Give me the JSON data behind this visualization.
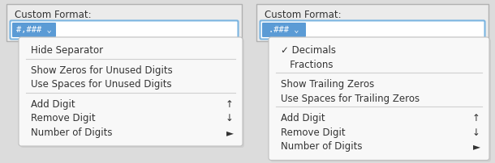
{
  "fig_w": 6.1,
  "fig_h": 2.02,
  "dpi": 100,
  "bg_color": "#dcdcdc",
  "panel_bg": "#ebebeb",
  "panel_border": "#b0b0b0",
  "input_bg": "#ffffff",
  "input_border": "#7ab4e0",
  "btn_bg": "#5b9bd5",
  "btn_text": "#ffffff",
  "menu_bg": "#f8f8f8",
  "menu_shadow_color": "#bbbbbb",
  "menu_border": "#c0c0c0",
  "sep_color": "#d0d0d0",
  "text_color": "#333333",
  "left": {
    "title": "Custom Format:",
    "btn_label": "#,### ⌄",
    "items": [
      {
        "text": "Hide Separator",
        "shortcut": "",
        "group": 1
      },
      {
        "text": "Show Zeros for Unused Digits",
        "shortcut": "",
        "group": 2
      },
      {
        "text": "Use Spaces for Unused Digits",
        "shortcut": "",
        "group": 2
      },
      {
        "text": "Add Digit",
        "shortcut": "↑",
        "group": 3
      },
      {
        "text": "Remove Digit",
        "shortcut": "↓",
        "group": 3
      },
      {
        "text": "Number of Digits",
        "shortcut": "►",
        "group": 3
      }
    ]
  },
  "right": {
    "title": "Custom Format:",
    "btn_label": ".### ⌄",
    "items": [
      {
        "text": "✓ Decimals",
        "shortcut": "",
        "group": 1
      },
      {
        "text": "   Fractions",
        "shortcut": "",
        "group": 1
      },
      {
        "text": "Show Trailing Zeros",
        "shortcut": "",
        "group": 2
      },
      {
        "text": "Use Spaces for Trailing Zeros",
        "shortcut": "",
        "group": 2
      },
      {
        "text": "Add Digit",
        "shortcut": "↑",
        "group": 3
      },
      {
        "text": "Remove Digit",
        "shortcut": "↓",
        "group": 3
      },
      {
        "text": "Number of Digits",
        "shortcut": "►",
        "group": 3
      }
    ]
  }
}
